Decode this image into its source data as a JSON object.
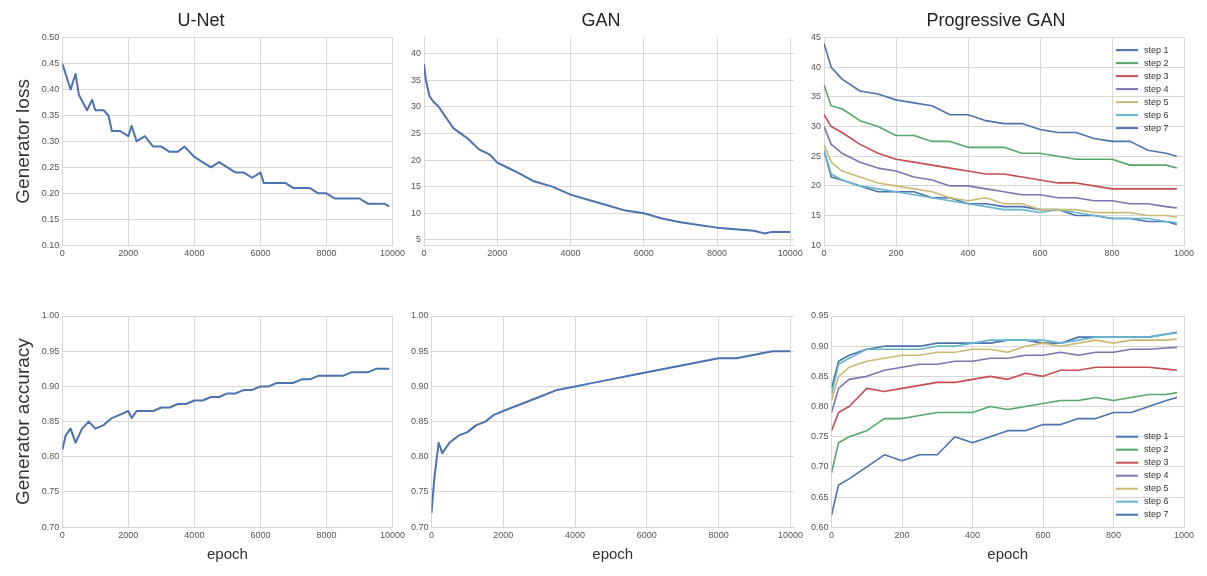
{
  "chart_data": [
    {
      "type": "line",
      "title": "U-Net",
      "ylabel": "Generator loss",
      "grid": true,
      "xlim": [
        0,
        10000
      ],
      "xticks": [
        0,
        2000,
        4000,
        6000,
        8000,
        10000
      ],
      "ylim": [
        0.1,
        0.5
      ],
      "yticks": [
        {
          "value": 0.1,
          "label": "0.10"
        },
        {
          "value": 0.15,
          "label": "0.15"
        },
        {
          "value": 0.2,
          "label": "0.20"
        },
        {
          "value": 0.25,
          "label": "0.25"
        },
        {
          "value": 0.3,
          "label": "0.30"
        },
        {
          "value": 0.35,
          "label": "0.35"
        },
        {
          "value": 0.4,
          "label": "0.40"
        },
        {
          "value": 0.45,
          "label": "0.45"
        },
        {
          "value": 0.5,
          "label": "0.50"
        }
      ],
      "series": [
        {
          "color": "#4c72b0",
          "x": [
            0,
            250,
            400,
            500,
            750,
            900,
            1000,
            1250,
            1400,
            1500,
            1750,
            2000,
            2100,
            2250,
            2500,
            2750,
            3000,
            3250,
            3500,
            3700,
            4000,
            4250,
            4500,
            4750,
            5000,
            5250,
            5500,
            5750,
            6000,
            6100,
            6500,
            6750,
            7000,
            7250,
            7500,
            7750,
            8000,
            8250,
            8500,
            8750,
            9000,
            9250,
            9500,
            9750,
            9900
          ],
          "values": [
            0.45,
            0.4,
            0.43,
            0.39,
            0.36,
            0.38,
            0.36,
            0.36,
            0.35,
            0.32,
            0.32,
            0.31,
            0.33,
            0.3,
            0.31,
            0.29,
            0.29,
            0.28,
            0.28,
            0.29,
            0.27,
            0.26,
            0.25,
            0.26,
            0.25,
            0.24,
            0.24,
            0.23,
            0.24,
            0.22,
            0.22,
            0.22,
            0.21,
            0.21,
            0.21,
            0.2,
            0.2,
            0.19,
            0.19,
            0.19,
            0.19,
            0.18,
            0.18,
            0.18,
            0.175
          ]
        }
      ]
    },
    {
      "type": "line",
      "title": "GAN",
      "grid": true,
      "xlim": [
        0,
        10100
      ],
      "xticks": [
        0,
        2000,
        4000,
        6000,
        8000,
        10000
      ],
      "ylim": [
        4,
        43
      ],
      "yticks": [
        5,
        10,
        15,
        20,
        25,
        30,
        35,
        40
      ],
      "series": [
        {
          "color": "#4c72b0",
          "x": [
            0,
            50,
            150,
            250,
            400,
            600,
            800,
            1000,
            1200,
            1500,
            1800,
            2000,
            2300,
            2600,
            3000,
            3500,
            4000,
            4500,
            5000,
            5500,
            6000,
            6500,
            7000,
            7500,
            8000,
            8500,
            9000,
            9300,
            9500,
            10000
          ],
          "values": [
            38,
            35,
            32,
            31,
            30,
            28,
            26,
            25,
            24,
            22,
            21,
            19.5,
            18.5,
            17.5,
            16,
            15,
            13.5,
            12.5,
            11.5,
            10.5,
            10,
            9,
            8.3,
            7.8,
            7.3,
            7,
            6.7,
            6.2,
            6.5,
            6.5
          ]
        }
      ]
    },
    {
      "type": "line",
      "title": "Progressive GAN",
      "grid": true,
      "legend": "top right",
      "xlim": [
        0,
        1000
      ],
      "xticks": [
        0,
        200,
        400,
        600,
        800,
        1000
      ],
      "ylim": [
        10,
        45
      ],
      "yticks": [
        10,
        15,
        20,
        25,
        30,
        35,
        40,
        45
      ],
      "x": [
        0,
        20,
        50,
        100,
        150,
        200,
        250,
        300,
        350,
        400,
        450,
        500,
        550,
        600,
        650,
        700,
        750,
        800,
        850,
        900,
        950,
        980
      ],
      "series": [
        {
          "name": "step 1",
          "color": "#4c72b0",
          "values": [
            44,
            40,
            38,
            36,
            35.5,
            34.5,
            34,
            33.5,
            32,
            32,
            31,
            30.5,
            30.5,
            29.5,
            29,
            29,
            28,
            27.5,
            27.5,
            26,
            25.5,
            25
          ]
        },
        {
          "name": "step 2",
          "color": "#55a868",
          "values": [
            37,
            33.5,
            33,
            31,
            30,
            28.5,
            28.5,
            27.5,
            27.5,
            26.5,
            26.5,
            26.5,
            25.5,
            25.5,
            25,
            24.5,
            24.5,
            24.5,
            23.5,
            23.5,
            23.5,
            23
          ]
        },
        {
          "name": "step 3",
          "color": "#c44e52",
          "values": [
            32,
            30,
            29,
            27,
            25.5,
            24.5,
            24,
            23.5,
            23,
            22.5,
            22,
            22,
            21.5,
            21,
            20.5,
            20.5,
            20,
            19.5,
            19.5,
            19.5,
            19.5,
            19.5
          ]
        },
        {
          "name": "step 4",
          "color": "#8172b2",
          "values": [
            30,
            27,
            25.5,
            24,
            23,
            22.5,
            21.5,
            21,
            20,
            20,
            19.5,
            19,
            18.5,
            18.5,
            18,
            18,
            17.5,
            17.5,
            17,
            17,
            16.5,
            16.3
          ]
        },
        {
          "name": "step 5",
          "color": "#ccb974",
          "values": [
            27,
            24,
            22.5,
            21.5,
            20.5,
            20,
            19.5,
            19,
            18,
            17.5,
            18,
            17,
            17,
            16,
            16,
            16,
            15.5,
            15.5,
            15.5,
            15,
            15,
            14.7
          ]
        },
        {
          "name": "step 6",
          "color": "#64b5cd",
          "values": [
            26,
            22,
            21,
            20,
            19.5,
            19,
            18.5,
            18,
            17.5,
            17,
            16.5,
            16,
            16,
            15.5,
            16,
            15.5,
            15,
            14.5,
            14.5,
            14.5,
            14,
            13.8
          ]
        },
        {
          "name": "step 7",
          "color": "#4c72b0",
          "values": [
            26,
            21.5,
            21,
            20,
            19,
            19,
            19,
            18,
            18,
            17,
            17,
            16.5,
            16.5,
            16,
            16,
            15,
            15,
            14.5,
            14.5,
            14,
            14,
            13.5
          ]
        }
      ]
    },
    {
      "type": "line",
      "xlabel": "epoch",
      "ylabel": "Generator accuracy",
      "grid": true,
      "xlim": [
        0,
        10000
      ],
      "xticks": [
        0,
        2000,
        4000,
        6000,
        8000,
        10000
      ],
      "ylim": [
        0.7,
        1
      ],
      "yticks": [
        {
          "value": 0.7,
          "label": "0.70"
        },
        {
          "value": 0.75,
          "label": "0.75"
        },
        {
          "value": 0.8,
          "label": "0.80"
        },
        {
          "value": 0.85,
          "label": "0.85"
        },
        {
          "value": 0.9,
          "label": "0.90"
        },
        {
          "value": 0.95,
          "label": "0.95"
        },
        {
          "value": 1,
          "label": "1.00"
        }
      ],
      "series": [
        {
          "color": "#4c72b0",
          "x": [
            0,
            100,
            250,
            400,
            600,
            800,
            1000,
            1250,
            1500,
            1750,
            2000,
            2100,
            2250,
            2500,
            2750,
            3000,
            3250,
            3500,
            3750,
            4000,
            4250,
            4500,
            4750,
            5000,
            5250,
            5500,
            5750,
            6000,
            6250,
            6500,
            6750,
            7000,
            7250,
            7500,
            7750,
            8000,
            8250,
            8500,
            8750,
            9000,
            9250,
            9500,
            9900
          ],
          "values": [
            0.81,
            0.83,
            0.84,
            0.82,
            0.84,
            0.85,
            0.84,
            0.845,
            0.855,
            0.86,
            0.865,
            0.855,
            0.865,
            0.865,
            0.865,
            0.87,
            0.87,
            0.875,
            0.875,
            0.88,
            0.88,
            0.885,
            0.885,
            0.89,
            0.89,
            0.895,
            0.895,
            0.9,
            0.9,
            0.905,
            0.905,
            0.905,
            0.91,
            0.91,
            0.915,
            0.915,
            0.915,
            0.915,
            0.92,
            0.92,
            0.92,
            0.925,
            0.925
          ]
        }
      ]
    },
    {
      "type": "line",
      "xlabel": "epoch",
      "grid": true,
      "xlim": [
        0,
        10100
      ],
      "xticks": [
        0,
        2000,
        4000,
        6000,
        8000,
        10000
      ],
      "ylim": [
        0.7,
        1
      ],
      "yticks": [
        {
          "value": 0.7,
          "label": "0.70"
        },
        {
          "value": 0.75,
          "label": "0.75"
        },
        {
          "value": 0.8,
          "label": "0.80"
        },
        {
          "value": 0.85,
          "label": "0.85"
        },
        {
          "value": 0.9,
          "label": "0.90"
        },
        {
          "value": 0.95,
          "label": "0.95"
        },
        {
          "value": 1,
          "label": "1.00"
        }
      ],
      "series": [
        {
          "color": "#4c72b0",
          "x": [
            0,
            30,
            80,
            150,
            200,
            300,
            500,
            750,
            1000,
            1250,
            1500,
            1750,
            2000,
            2500,
            3000,
            3500,
            4000,
            4500,
            5000,
            5500,
            6000,
            6500,
            7000,
            7500,
            8000,
            8500,
            9000,
            9500,
            10000
          ],
          "values": [
            0.72,
            0.74,
            0.77,
            0.8,
            0.82,
            0.805,
            0.82,
            0.83,
            0.835,
            0.845,
            0.85,
            0.86,
            0.865,
            0.875,
            0.885,
            0.895,
            0.9,
            0.905,
            0.91,
            0.915,
            0.92,
            0.925,
            0.93,
            0.935,
            0.94,
            0.94,
            0.945,
            0.95,
            0.95
          ]
        }
      ]
    },
    {
      "type": "line",
      "xlabel": "epoch",
      "grid": true,
      "legend": "bottom right",
      "xlim": [
        0,
        1000
      ],
      "xticks": [
        0,
        200,
        400,
        600,
        800,
        1000
      ],
      "ylim": [
        0.6,
        0.95
      ],
      "yticks": [
        {
          "value": 0.6,
          "label": "0.60"
        },
        {
          "value": 0.65,
          "label": "0.65"
        },
        {
          "value": 0.7,
          "label": "0.70"
        },
        {
          "value": 0.75,
          "label": "0.75"
        },
        {
          "value": 0.8,
          "label": "0.80"
        },
        {
          "value": 0.85,
          "label": "0.85"
        },
        {
          "value": 0.9,
          "label": "0.90"
        },
        {
          "value": 0.95,
          "label": "0.95"
        }
      ],
      "x": [
        0,
        20,
        50,
        100,
        150,
        200,
        250,
        300,
        350,
        400,
        450,
        500,
        550,
        600,
        650,
        700,
        750,
        800,
        850,
        900,
        950,
        980
      ],
      "series": [
        {
          "name": "step 1",
          "color": "#4c72b0",
          "values": [
            0.62,
            0.67,
            0.68,
            0.7,
            0.72,
            0.71,
            0.72,
            0.72,
            0.75,
            0.74,
            0.75,
            0.76,
            0.76,
            0.77,
            0.77,
            0.78,
            0.78,
            0.79,
            0.79,
            0.8,
            0.81,
            0.815
          ]
        },
        {
          "name": "step 2",
          "color": "#55a868",
          "values": [
            0.69,
            0.74,
            0.75,
            0.76,
            0.78,
            0.78,
            0.785,
            0.79,
            0.79,
            0.79,
            0.8,
            0.795,
            0.8,
            0.805,
            0.81,
            0.81,
            0.815,
            0.81,
            0.815,
            0.82,
            0.82,
            0.823
          ]
        },
        {
          "name": "step 3",
          "color": "#c44e52",
          "values": [
            0.76,
            0.79,
            0.8,
            0.83,
            0.825,
            0.83,
            0.835,
            0.84,
            0.84,
            0.845,
            0.85,
            0.845,
            0.855,
            0.85,
            0.86,
            0.86,
            0.865,
            0.865,
            0.865,
            0.865,
            0.862,
            0.86
          ]
        },
        {
          "name": "step 4",
          "color": "#8172b2",
          "values": [
            0.79,
            0.83,
            0.845,
            0.85,
            0.86,
            0.865,
            0.87,
            0.87,
            0.875,
            0.875,
            0.88,
            0.88,
            0.885,
            0.885,
            0.89,
            0.885,
            0.89,
            0.89,
            0.895,
            0.895,
            0.897,
            0.898
          ]
        },
        {
          "name": "step 5",
          "color": "#ccb974",
          "values": [
            0.81,
            0.85,
            0.865,
            0.875,
            0.88,
            0.885,
            0.885,
            0.89,
            0.89,
            0.895,
            0.895,
            0.89,
            0.9,
            0.905,
            0.9,
            0.905,
            0.91,
            0.905,
            0.91,
            0.91,
            0.91,
            0.912
          ]
        },
        {
          "name": "step 6",
          "color": "#64b5cd",
          "values": [
            0.82,
            0.87,
            0.88,
            0.895,
            0.895,
            0.895,
            0.895,
            0.9,
            0.9,
            0.905,
            0.91,
            0.91,
            0.91,
            0.91,
            0.905,
            0.91,
            0.915,
            0.915,
            0.915,
            0.915,
            0.92,
            0.922
          ]
        },
        {
          "name": "step 7",
          "color": "#4c72b0",
          "values": [
            0.83,
            0.875,
            0.885,
            0.895,
            0.9,
            0.9,
            0.9,
            0.905,
            0.905,
            0.905,
            0.905,
            0.91,
            0.91,
            0.905,
            0.905,
            0.915,
            0.915,
            0.915,
            0.915,
            0.915,
            0.92,
            0.923
          ]
        }
      ]
    }
  ]
}
